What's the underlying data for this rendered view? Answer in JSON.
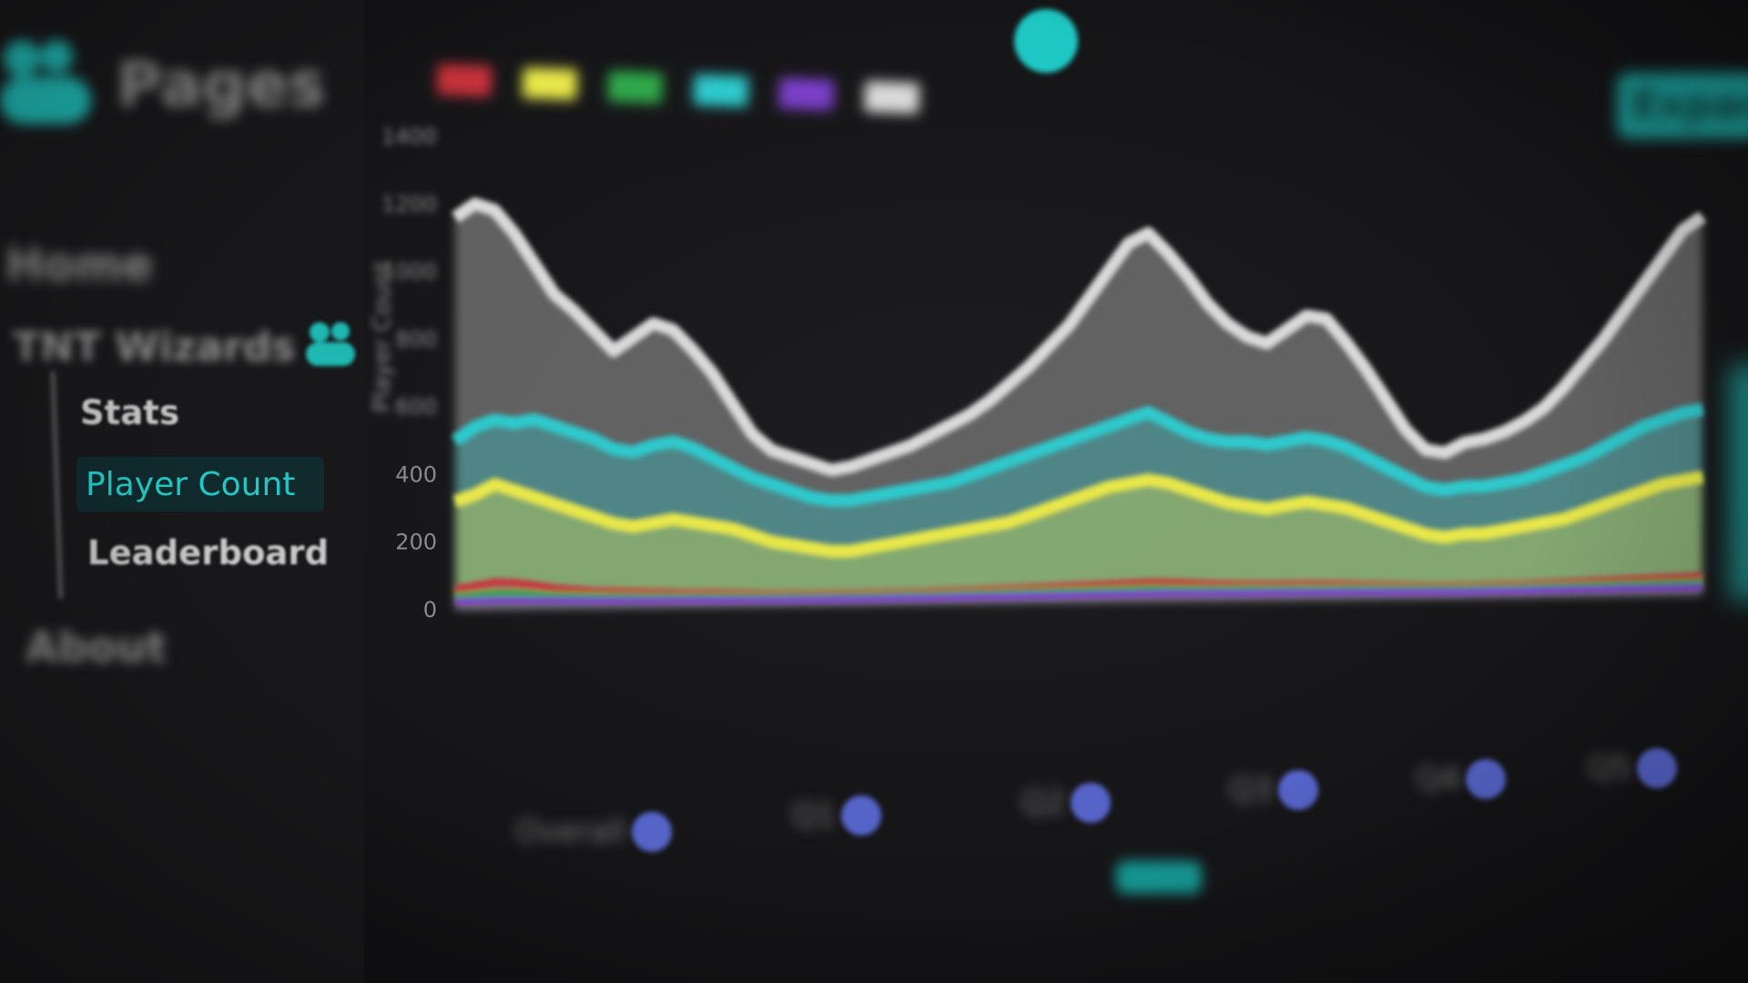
{
  "sidebar": {
    "brand_title": "Pages",
    "home_label": "Home",
    "group_label": "TNT Wizards",
    "items": [
      {
        "label": "Stats",
        "active": false
      },
      {
        "label": "Player Count",
        "active": true
      },
      {
        "label": "Leaderboard",
        "active": false
      }
    ],
    "about_label": "About"
  },
  "header": {
    "action_label": "Expand"
  },
  "colors": {
    "accent": "#1fc8c4",
    "active_bg": "#102a2d",
    "total": "#d9d9d9",
    "series_cyan": "#2ec9cc",
    "series_yellow": "#e8e74a",
    "series_green": "#2fa84a",
    "series_red": "#c9323c",
    "series_purple": "#7b3fc8",
    "slider_knob": "#5664c8"
  },
  "chart_data": {
    "type": "area",
    "ylabel": "Player Count",
    "y_ticks": [
      0,
      200,
      400,
      600,
      800,
      1000,
      1200,
      1400
    ],
    "ylim": [
      0,
      1400
    ],
    "grid": false,
    "legend_placement": "top",
    "series": [
      {
        "name": "",
        "color": "#d9d9d9",
        "values": [
          1160,
          1200,
          1180,
          1110,
          1020,
          930,
          880,
          820,
          760,
          800,
          840,
          820,
          760,
          690,
          600,
          510,
          460,
          440,
          420,
          400,
          410,
          430,
          450,
          470,
          500,
          530,
          560,
          600,
          650,
          700,
          760,
          820,
          900,
          980,
          1060,
          1090,
          1030,
          960,
          880,
          820,
          780,
          760,
          800,
          840,
          830,
          760,
          680,
          590,
          500,
          440,
          430,
          460,
          470,
          490,
          520,
          560,
          620,
          690,
          760,
          840,
          920,
          1000,
          1080,
          1120
        ]
      },
      {
        "name": "",
        "color": "#2ec9cc",
        "values": [
          500,
          540,
          560,
          550,
          560,
          540,
          520,
          500,
          470,
          460,
          480,
          490,
          470,
          440,
          410,
          380,
          360,
          340,
          320,
          310,
          310,
          320,
          330,
          340,
          350,
          360,
          380,
          400,
          420,
          440,
          460,
          480,
          500,
          520,
          540,
          560,
          530,
          500,
          480,
          470,
          470,
          460,
          470,
          480,
          470,
          450,
          420,
          390,
          360,
          330,
          320,
          330,
          330,
          340,
          350,
          370,
          390,
          410,
          440,
          470,
          500,
          520,
          540,
          550
        ]
      },
      {
        "name": "",
        "color": "#e8e74a",
        "values": [
          320,
          340,
          370,
          350,
          330,
          310,
          290,
          270,
          250,
          240,
          250,
          260,
          250,
          240,
          230,
          210,
          190,
          180,
          170,
          160,
          160,
          170,
          180,
          190,
          200,
          210,
          220,
          230,
          240,
          260,
          280,
          300,
          320,
          340,
          350,
          360,
          350,
          330,
          310,
          290,
          280,
          270,
          280,
          290,
          280,
          270,
          250,
          230,
          210,
          190,
          180,
          190,
          190,
          200,
          210,
          220,
          230,
          250,
          270,
          290,
          310,
          330,
          340,
          350
        ]
      },
      {
        "name": "",
        "color": "#c9323c",
        "values": [
          60,
          70,
          80,
          78,
          70,
          60,
          55,
          50,
          48,
          46,
          44,
          42,
          40,
          40,
          38,
          36,
          34,
          34,
          33,
          33,
          33,
          34,
          34,
          35,
          36,
          37,
          38,
          40,
          42,
          44,
          46,
          48,
          50,
          52,
          54,
          56,
          55,
          53,
          50,
          48,
          47,
          46,
          46,
          46,
          45,
          44,
          42,
          40,
          38,
          36,
          35,
          35,
          36,
          37,
          38,
          40,
          42,
          44,
          46,
          48,
          50,
          52,
          54,
          56
        ]
      },
      {
        "name": "",
        "color": "#2fa84a",
        "values": [
          40,
          42,
          44,
          44,
          42,
          40,
          38,
          36,
          34,
          33,
          32,
          31,
          30,
          30,
          29,
          28,
          27,
          27,
          26,
          26,
          26,
          27,
          27,
          28,
          28,
          29,
          30,
          31,
          32,
          33,
          34,
          35,
          36,
          37,
          38,
          39,
          38,
          37,
          36,
          35,
          35,
          34,
          34,
          34,
          33,
          33,
          32,
          31,
          30,
          29,
          28,
          28,
          29,
          29,
          30,
          31,
          32,
          33,
          34,
          35,
          36,
          37,
          38,
          39
        ]
      },
      {
        "name": "",
        "color": "#7b3fc8",
        "values": [
          24,
          25,
          26,
          26,
          25,
          24,
          23,
          22,
          21,
          21,
          20,
          20,
          19,
          19,
          18,
          18,
          17,
          17,
          17,
          17,
          17,
          17,
          18,
          18,
          18,
          19,
          19,
          20,
          20,
          21,
          21,
          22,
          22,
          23,
          23,
          24,
          24,
          23,
          23,
          22,
          22,
          22,
          22,
          22,
          21,
          21,
          20,
          20,
          19,
          19,
          18,
          18,
          19,
          19,
          19,
          20,
          20,
          21,
          21,
          22,
          22,
          23,
          23,
          24
        ]
      }
    ]
  },
  "sliders": [
    {
      "label": "Overall"
    },
    {
      "label": "Q1"
    },
    {
      "label": "Q2"
    },
    {
      "label": "Q3"
    },
    {
      "label": "Q4"
    },
    {
      "label": "Q5"
    }
  ],
  "footer": {
    "caption": "",
    "button_label": ""
  }
}
